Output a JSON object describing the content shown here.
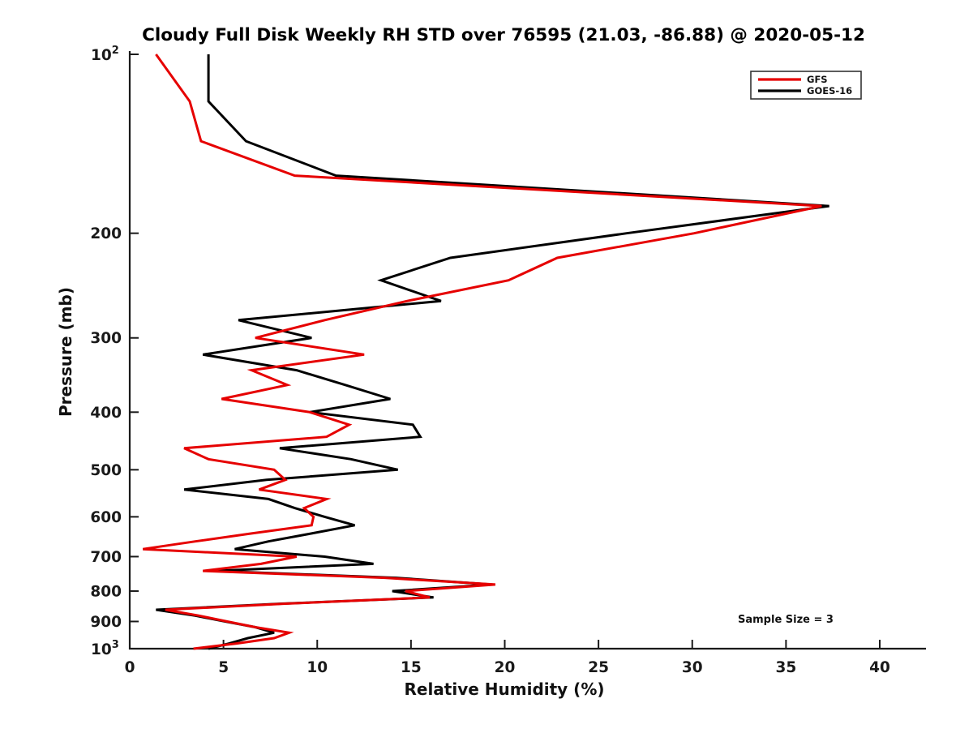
{
  "title": "Cloudy Full Disk Weekly RH STD over 76595 (21.03, -86.88) @ 2020-05-12",
  "annotation": "Sample Size = 3",
  "colors": {
    "gfs": "#e60000",
    "goes16": "#000000",
    "axis": "#1a1a1a",
    "background": "#ffffff"
  },
  "legend": {
    "position": "top-right",
    "entries": [
      {
        "label": "GFS",
        "color": "#e60000"
      },
      {
        "label": "GOES-16",
        "color": "#000000"
      }
    ]
  },
  "axes": {
    "x": {
      "label": "Relative Humidity (%)",
      "min": 0,
      "max": 40,
      "ticks": [
        0,
        5,
        10,
        15,
        20,
        25,
        30,
        35,
        40
      ]
    },
    "y": {
      "label": "Pressure (mb)",
      "scale": "log10",
      "direction": "inverted (100 mb top, 1000 mb bottom)",
      "min": 100,
      "max": 1000,
      "top_tick": {
        "base": "10",
        "exp": "2"
      },
      "bottom_tick": {
        "base": "10",
        "exp": "3"
      },
      "ticks": [
        200,
        300,
        400,
        500,
        600,
        700,
        800,
        900
      ]
    }
  },
  "chart_data": {
    "type": "line",
    "title": "Cloudy Full Disk Weekly RH STD over 76595 (21.03, -86.88) @ 2020-05-12",
    "xlabel": "Relative Humidity (%)",
    "ylabel": "Pressure (mb)",
    "xlim": [
      0,
      40
    ],
    "ylim_mb": [
      100,
      1000
    ],
    "y_axis": "log, inverted",
    "grid": false,
    "legend_position": "upper right",
    "sample_size": 3,
    "pressure_levels_mb": [
      100,
      120,
      140,
      160,
      180,
      200,
      220,
      240,
      260,
      280,
      300,
      320,
      340,
      360,
      380,
      400,
      420,
      440,
      460,
      480,
      500,
      520,
      540,
      560,
      580,
      600,
      620,
      640,
      660,
      680,
      700,
      720,
      740,
      760,
      780,
      800,
      820,
      840,
      860,
      880,
      900,
      920,
      940,
      960,
      980,
      1000
    ],
    "series": [
      {
        "name": "GFS",
        "color": "#e60000",
        "rh_std_percent": [
          1.4,
          3.2,
          3.8,
          8.8,
          36.9,
          30.1,
          22.8,
          20.2,
          14.8,
          10.4,
          6.7,
          12.5,
          6.5,
          8.4,
          4.9,
          9.6,
          11.7,
          10.5,
          2.9,
          4.2,
          7.7,
          8.3,
          6.9,
          10.5,
          9.3,
          9.8,
          9.7,
          6.5,
          3.5,
          0.7,
          8.9,
          7.0,
          3.9,
          13.6,
          19.5,
          14.7,
          16.0,
          8.3,
          1.9,
          3.7,
          5.2,
          6.7,
          8.5,
          7.7,
          5.7,
          3.4
        ]
      },
      {
        "name": "GOES-16",
        "color": "#000000",
        "rh_std_percent": [
          4.2,
          4.2,
          6.2,
          11.0,
          37.3,
          26.5,
          17.1,
          13.4,
          16.6,
          5.8,
          9.7,
          3.9,
          8.9,
          11.5,
          13.9,
          9.6,
          15.1,
          15.5,
          8.0,
          11.8,
          14.3,
          7.3,
          2.9,
          7.4,
          8.8,
          10.4,
          12.0,
          9.7,
          7.4,
          5.6,
          10.4,
          13.0,
          4.5,
          14.2,
          19.3,
          14.0,
          16.2,
          8.1,
          1.4,
          3.5,
          5.1,
          6.7,
          7.7,
          6.3,
          5.3,
          4.2
        ]
      }
    ]
  }
}
